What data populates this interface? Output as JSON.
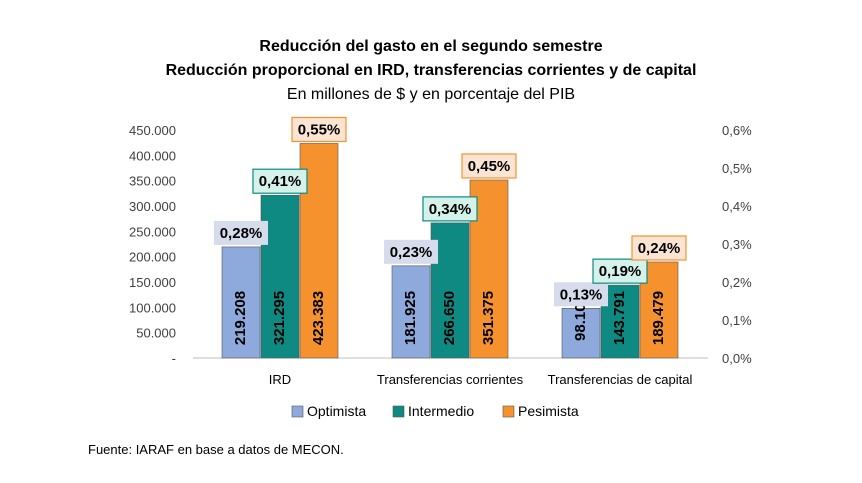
{
  "titles": {
    "line1": "Reducción del gasto en el segundo semestre",
    "line2": "Reducción proporcional en IRD, transferencias corrientes y de capital",
    "line3": "En millones de $ y en porcentaje del PIB"
  },
  "source": "Fuente: IARAF en base a datos de MECON.",
  "colors": {
    "Optimista": "#8EA9DB",
    "Intermedio": "#0E8A82",
    "Pesimista": "#F5922E",
    "label_opt_bg": "#D6DCEC",
    "label_int_bg": "#D4F1EA",
    "label_pes_bg": "#FCE4D2"
  },
  "chart_data": {
    "type": "bar",
    "categories": [
      "IRD",
      "Transferencias corrientes",
      "Transferencias de capital"
    ],
    "series": [
      {
        "name": "Optimista",
        "values": [
          219208,
          181925,
          98103
        ],
        "value_labels": [
          "219.208",
          "181.925",
          "98.103"
        ],
        "pct_labels": [
          "0,28%",
          "0,23%",
          "0,13%"
        ],
        "pct": [
          0.28,
          0.23,
          0.13
        ]
      },
      {
        "name": "Intermedio",
        "values": [
          321295,
          266650,
          143791
        ],
        "value_labels": [
          "321.295",
          "266.650",
          "143.791"
        ],
        "pct_labels": [
          "0,41%",
          "0,34%",
          "0,19%"
        ],
        "pct": [
          0.41,
          0.34,
          0.19
        ]
      },
      {
        "name": "Pesimista",
        "values": [
          423383,
          351375,
          189479
        ],
        "value_labels": [
          "423.383",
          "351.375",
          "189.479"
        ],
        "pct_labels": [
          "0,55%",
          "0,45%",
          "0,24%"
        ],
        "pct": [
          0.55,
          0.45,
          0.24
        ]
      }
    ],
    "ylim": [
      0,
      450000
    ],
    "y_ticks": [
      0,
      50000,
      100000,
      150000,
      200000,
      250000,
      300000,
      350000,
      400000,
      450000
    ],
    "y_tick_labels": [
      "-",
      "50.000",
      "100.000",
      "150.000",
      "200.000",
      "250.000",
      "300.000",
      "350.000",
      "400.000",
      "450.000"
    ],
    "y2lim": [
      0,
      0.6
    ],
    "y2_ticks": [
      0,
      0.1,
      0.2,
      0.3,
      0.4,
      0.5,
      0.6
    ],
    "y2_tick_labels": [
      "0,0%",
      "0,1%",
      "0,2%",
      "0,3%",
      "0,4%",
      "0,5%",
      "0,6%"
    ],
    "grid": false,
    "legend": "bottom"
  }
}
